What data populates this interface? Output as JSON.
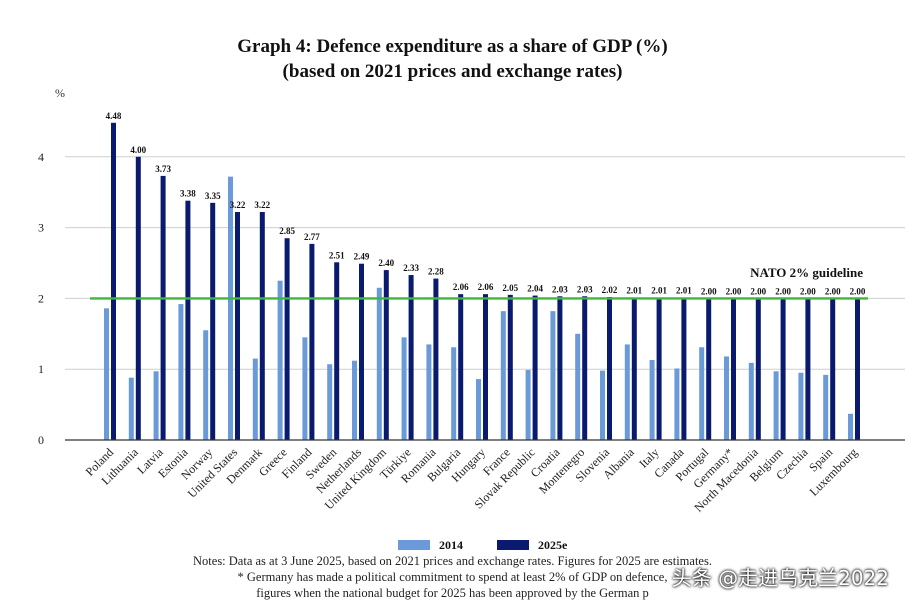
{
  "chart_data": {
    "type": "bar",
    "title": "Graph 4: Defence expenditure as a share of GDP (%)",
    "subtitle": "(based on 2021 prices and exchange rates)",
    "ylabel": "%",
    "ylim": [
      0,
      5
    ],
    "yticks": [
      0,
      1,
      2,
      3,
      4
    ],
    "grid": true,
    "legend_position": "bottom",
    "categories": [
      "Poland",
      "Lithuania",
      "Latvia",
      "Estonia",
      "Norway",
      "United States",
      "Denmark",
      "Greece",
      "Finland",
      "Sweden",
      "Netherlands",
      "United Kingdom",
      "Türkiye",
      "Romania",
      "Bulgaria",
      "Hungary",
      "France",
      "Slovak Republic",
      "Croatia",
      "Montenegro",
      "Slovenia",
      "Albania",
      "Italy",
      "Canada",
      "Portugal",
      "Germany*",
      "North Macedonia",
      "Belgium",
      "Czechia",
      "Spain",
      "Luxembourg"
    ],
    "series": [
      {
        "name": "2014",
        "color": "#6a9bd8",
        "values": [
          1.86,
          0.88,
          0.97,
          1.92,
          1.55,
          3.72,
          1.15,
          2.25,
          1.45,
          1.07,
          1.12,
          2.15,
          1.45,
          1.35,
          1.31,
          0.86,
          1.82,
          0.99,
          1.82,
          1.5,
          0.98,
          1.35,
          1.13,
          1.01,
          1.31,
          1.18,
          1.09,
          0.97,
          0.95,
          0.92,
          0.37
        ]
      },
      {
        "name": "2025e",
        "color": "#0a1a6e",
        "values": [
          4.48,
          4.0,
          3.73,
          3.38,
          3.35,
          3.22,
          3.22,
          2.85,
          2.77,
          2.51,
          2.49,
          2.4,
          2.33,
          2.28,
          2.06,
          2.06,
          2.05,
          2.04,
          2.03,
          2.03,
          2.02,
          2.01,
          2.01,
          2.01,
          2.0,
          2.0,
          2.0,
          2.0,
          2.0,
          2.0,
          2.0
        ],
        "labels": [
          "4.48",
          "4.00",
          "3.73",
          "3.38",
          "3.35",
          "3.22",
          "3.22",
          "2.85",
          "2.77",
          "2.51",
          "2.49",
          "2.40",
          "2.33",
          "2.28",
          "2.06",
          "2.06",
          "2.05",
          "2.04",
          "2.03",
          "2.03",
          "2.02",
          "2.01",
          "2.01",
          "2.01",
          "2.00",
          "2.00",
          "2.00",
          "2.00",
          "2.00",
          "2.00",
          "2.00"
        ]
      }
    ],
    "reference_line": {
      "value": 2,
      "label": "NATO 2% guideline",
      "color": "#3cb83c"
    }
  },
  "notes": {
    "line1": "Notes: Data as at 3 June 2025, based on 2021 prices and exchange rates. Figures for 2025 are estimates.",
    "line2": "* Germany has made a political commitment to spend at least 2% of GDP on defence,",
    "line3": "figures when the national budget for 2025 has been approved by the German p"
  },
  "watermark": "头条 @走进乌克兰2022"
}
